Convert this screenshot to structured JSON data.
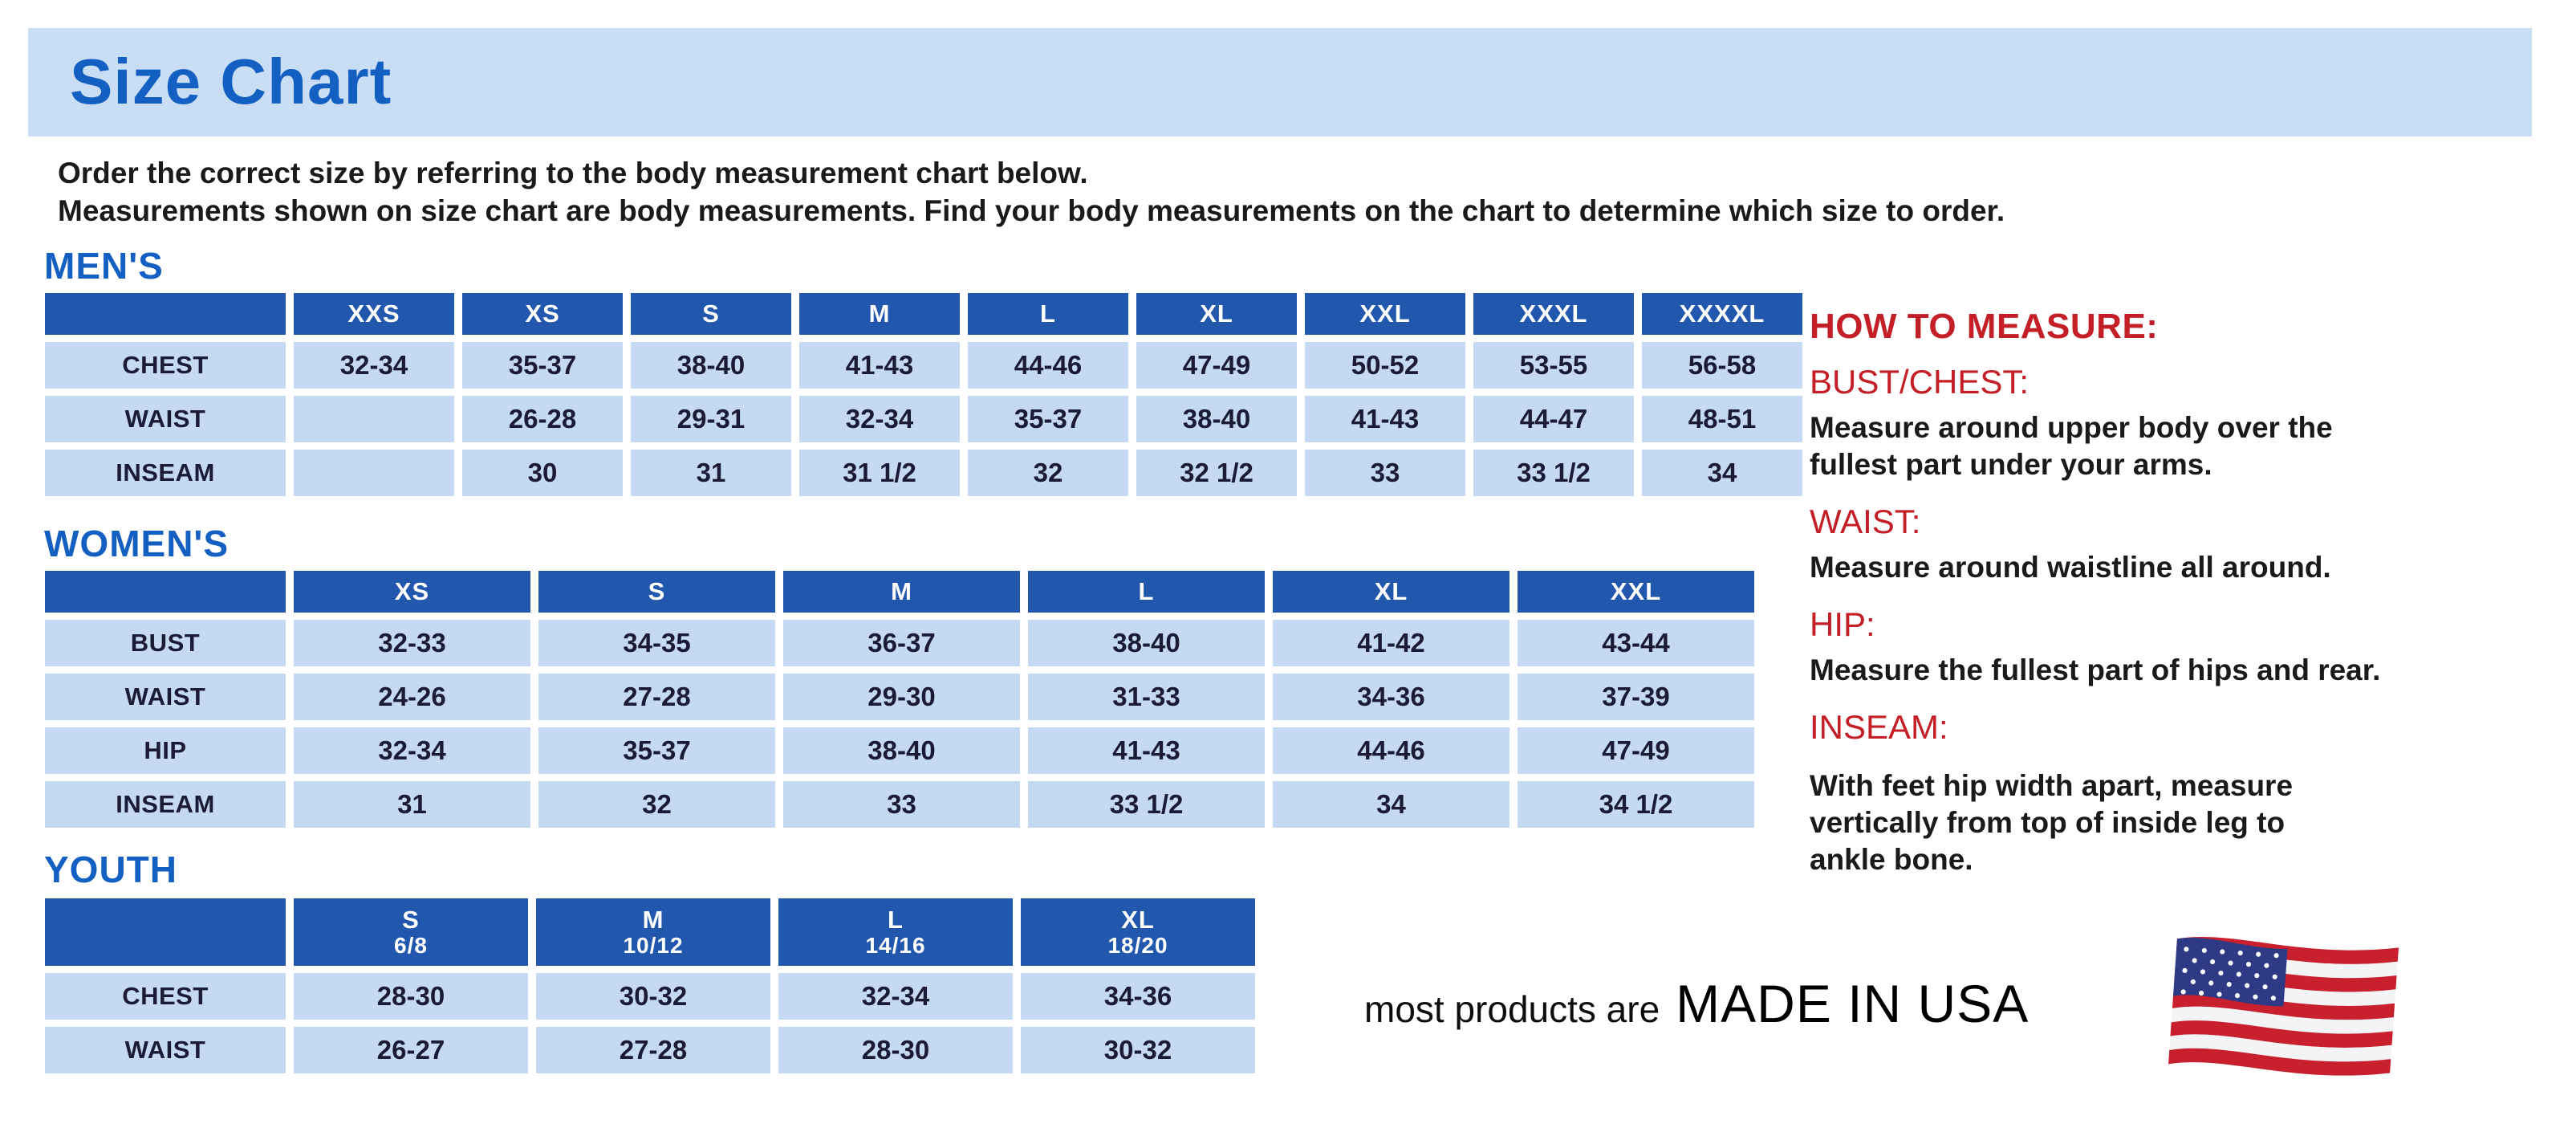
{
  "page": {
    "title": "Size Chart",
    "intro_line1": "Order the correct size by referring to the body measurement chart below.",
    "intro_line2": "Measurements shown on size chart are body measurements.  Find your body measurements on the chart to determine which size to order."
  },
  "colors": {
    "heading_blue": "#135fc2",
    "table_header_blue": "#2257ae",
    "banner_background": "#c9def5",
    "cell_blue": "#c5daf2",
    "cell_text": "#1b1b36",
    "red": "#c41e26",
    "body_text": "#1a1a1a",
    "flag_red": "#c8202d",
    "flag_canton_blue": "#2e3a85"
  },
  "tables": {
    "mens": {
      "label": "MEN'S",
      "columns": [
        "XXS",
        "XS",
        "S",
        "M",
        "L",
        "XL",
        "XXL",
        "XXXL",
        "XXXXL"
      ],
      "rows": [
        {
          "label": "CHEST",
          "values": [
            "32-34",
            "35-37",
            "38-40",
            "41-43",
            "44-46",
            "47-49",
            "50-52",
            "53-55",
            "56-58"
          ]
        },
        {
          "label": "WAIST",
          "values": [
            "",
            "26-28",
            "29-31",
            "32-34",
            "35-37",
            "38-40",
            "41-43",
            "44-47",
            "48-51"
          ]
        },
        {
          "label": "INSEAM",
          "values": [
            "",
            "30",
            "31",
            "31 1/2",
            "32",
            "32 1/2",
            "33",
            "33 1/2",
            "34"
          ]
        }
      ]
    },
    "womens": {
      "label": "WOMEN'S",
      "columns": [
        "XS",
        "S",
        "M",
        "L",
        "XL",
        "XXL"
      ],
      "rows": [
        {
          "label": "BUST",
          "values": [
            "32-33",
            "34-35",
            "36-37",
            "38-40",
            "41-42",
            "43-44"
          ]
        },
        {
          "label": "WAIST",
          "values": [
            "24-26",
            "27-28",
            "29-30",
            "31-33",
            "34-36",
            "37-39"
          ]
        },
        {
          "label": "HIP",
          "values": [
            "32-34",
            "35-37",
            "38-40",
            "41-43",
            "44-46",
            "47-49"
          ]
        },
        {
          "label": "INSEAM",
          "values": [
            "31",
            "32",
            "33",
            "33 1/2",
            "34",
            "34 1/2"
          ]
        }
      ]
    },
    "youth": {
      "label": "YOUTH",
      "columns": [
        {
          "size": "S",
          "range": "6/8"
        },
        {
          "size": "M",
          "range": "10/12"
        },
        {
          "size": "L",
          "range": "14/16"
        },
        {
          "size": "XL",
          "range": "18/20"
        }
      ],
      "rows": [
        {
          "label": "CHEST",
          "values": [
            "28-30",
            "30-32",
            "32-34",
            "34-36"
          ]
        },
        {
          "label": "WAIST",
          "values": [
            "26-27",
            "27-28",
            "28-30",
            "30-32"
          ]
        }
      ]
    }
  },
  "how_to_measure": {
    "title": "HOW TO MEASURE:",
    "items": [
      {
        "term": "BUST/CHEST:",
        "desc": "Measure around upper body over the\nfullest part under your arms."
      },
      {
        "term": "WAIST:",
        "desc": "Measure around waistline all around."
      },
      {
        "term": "HIP:",
        "desc": "Measure the fullest part of hips and rear."
      },
      {
        "term": "INSEAM:",
        "desc": "With feet hip width apart, measure\nvertically from top of inside leg to\nankle bone."
      }
    ]
  },
  "footer": {
    "prefix": "most products are",
    "emphasis": "MADE IN USA",
    "flag_icon": "usa-flag-icon"
  }
}
